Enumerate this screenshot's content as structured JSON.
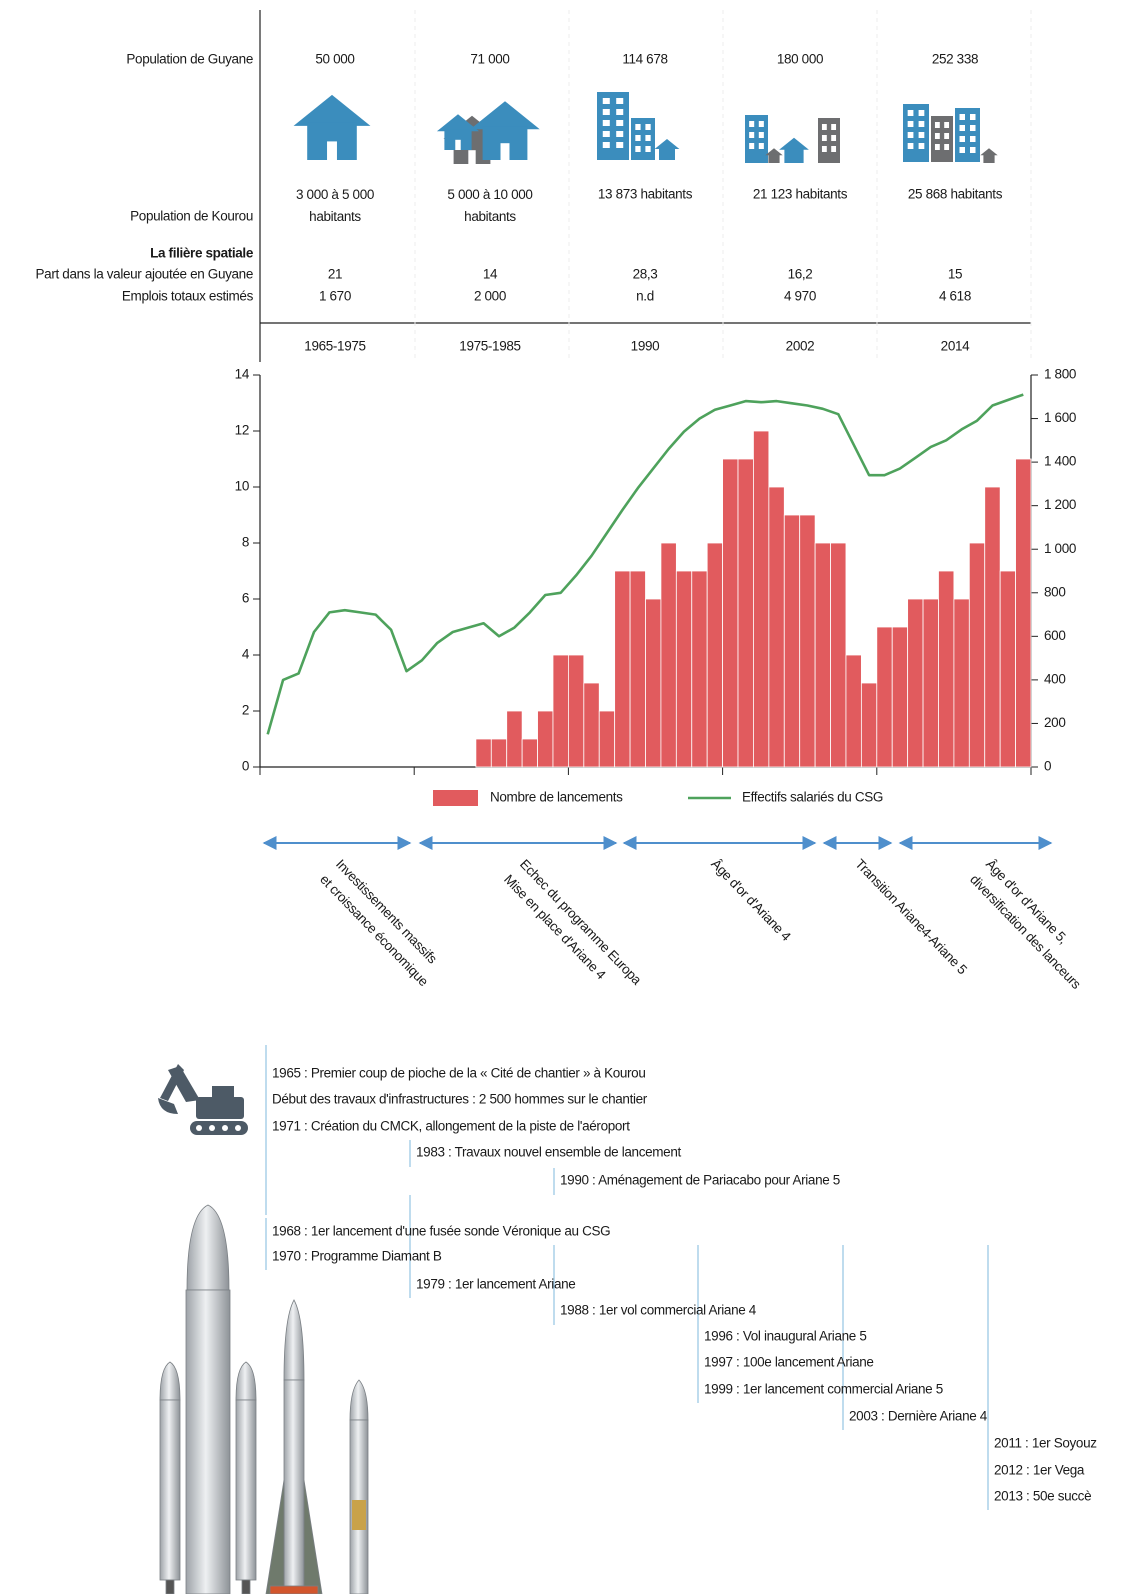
{
  "table": {
    "row_labels": {
      "population_guyane": "Population de Guyane",
      "population_kourou": "Population de Kourou",
      "section": "La filière spatiale",
      "part_va": "Part dans la valeur ajoutée en Guyane",
      "emplois": "Emplois totaux estimés"
    },
    "columns": [
      {
        "population_guyane": "50 000",
        "population_kourou": "3 000 à 5 000\nhabitants",
        "part_va": "21",
        "emplois": "1 670",
        "period": "1965-1975"
      },
      {
        "population_guyane": "71 000",
        "population_kourou": "5 000 à 10 000\nhabitants",
        "part_va": "14",
        "emplois": "2 000",
        "period": "1975-1985"
      },
      {
        "population_guyane": "114 678",
        "population_kourou": "13 873 habitants",
        "part_va": "28,3",
        "emplois": "n.d",
        "period": "1990"
      },
      {
        "population_guyane": "180 000",
        "population_kourou": "21 123 habitants",
        "part_va": "16,2",
        "emplois": "4 970",
        "period": "2002"
      },
      {
        "population_guyane": "252 338",
        "population_kourou": "25 868 habitants",
        "part_va": "15",
        "emplois": "4 618",
        "period": "2014"
      }
    ]
  },
  "chart_data": {
    "type": "combo",
    "categories": [
      null,
      null,
      null,
      null,
      null,
      null,
      null,
      null,
      null,
      null,
      null,
      null,
      null,
      null,
      null,
      null,
      null,
      null,
      null,
      null,
      null,
      null,
      null,
      null,
      null,
      null,
      null,
      null,
      null,
      null,
      null,
      null,
      null,
      null,
      null,
      null,
      null,
      null,
      null,
      null,
      null,
      null,
      null,
      null,
      null,
      null,
      null,
      null,
      null,
      null
    ],
    "ylim": [
      0,
      14
    ],
    "yticks": [
      0,
      2,
      4,
      6,
      8,
      10,
      12,
      14
    ],
    "y2lim": [
      0,
      1800
    ],
    "y2ticks": [
      0,
      200,
      400,
      600,
      800,
      {
        "value": 1000,
        "label": "1 000"
      },
      {
        "value": 1200,
        "label": "1 200"
      },
      {
        "value": 1400,
        "label": "1 400"
      },
      {
        "value": 1600,
        "label": "1 600"
      },
      {
        "value": 1800,
        "label": "1 800"
      }
    ],
    "series": [
      {
        "name": "Nombre de lancements",
        "type": "bar",
        "color": "#e15b5e",
        "values": [
          null,
          null,
          null,
          null,
          null,
          null,
          null,
          null,
          null,
          null,
          null,
          null,
          null,
          null,
          1,
          1,
          2,
          1,
          2,
          4,
          4,
          3,
          2,
          7,
          7,
          6,
          8,
          7,
          7,
          8,
          11,
          11,
          12,
          10,
          9,
          9,
          8,
          8,
          4,
          3,
          5,
          5,
          6,
          6,
          7,
          6,
          8,
          10,
          7,
          11
        ]
      },
      {
        "name": "Effectifs salariés du CSG",
        "type": "line",
        "axis": "y2",
        "color": "#4ea25c",
        "values": [
          150,
          400,
          430,
          620,
          710,
          720,
          710,
          700,
          630,
          440,
          490,
          570,
          620,
          640,
          660,
          600,
          640,
          710,
          790,
          800,
          880,
          970,
          1075,
          1180,
          1280,
          1370,
          1460,
          1540,
          1600,
          1640,
          1660,
          1680,
          1675,
          1680,
          1670,
          1660,
          1645,
          1620,
          1480,
          1340,
          1340,
          1370,
          1420,
          1470,
          1500,
          1550,
          1590,
          1660,
          1685,
          1710
        ]
      }
    ]
  },
  "phases": [
    "Investissements massifs\net croissance économique",
    "Echec du programme Europa\nMise en place d'Ariane 4",
    "Âge d'or d'Ariane 4",
    "Transition Ariane4-Ariane 5",
    "Âge d'or d'Ariane 5,\ndiversification des lanceurs"
  ],
  "timeline": {
    "infrastructure": [
      "1965 : Premier coup de pioche de la « Cité de chantier » à Kourou",
      "Début des travaux d'infrastructures :  2 500 hommes sur le chantier",
      "1971 : Création du CMCK, allongement de la piste de l'aéroport",
      "1983 : Travaux nouvel ensemble de lancement",
      "1990 : Aménagement de Pariacabo pour Ariane 5"
    ],
    "launches": [
      "1968 : 1er lancement d'une fusée sonde Véronique au CSG",
      "1970 : Programme Diamant B",
      "1979 : 1er lancement Ariane",
      "1988 : 1er vol commercial Ariane 4",
      "1996 : Vol inaugural Ariane 5",
      "1997 : 100e lancement Ariane",
      "1999 : 1er lancement commercial Ariane 5",
      "2003 : Dernière Ariane 4",
      "2011 : 1er Soyouz",
      "2012 : 1er Vega",
      "2013 : 50e succè"
    ]
  }
}
